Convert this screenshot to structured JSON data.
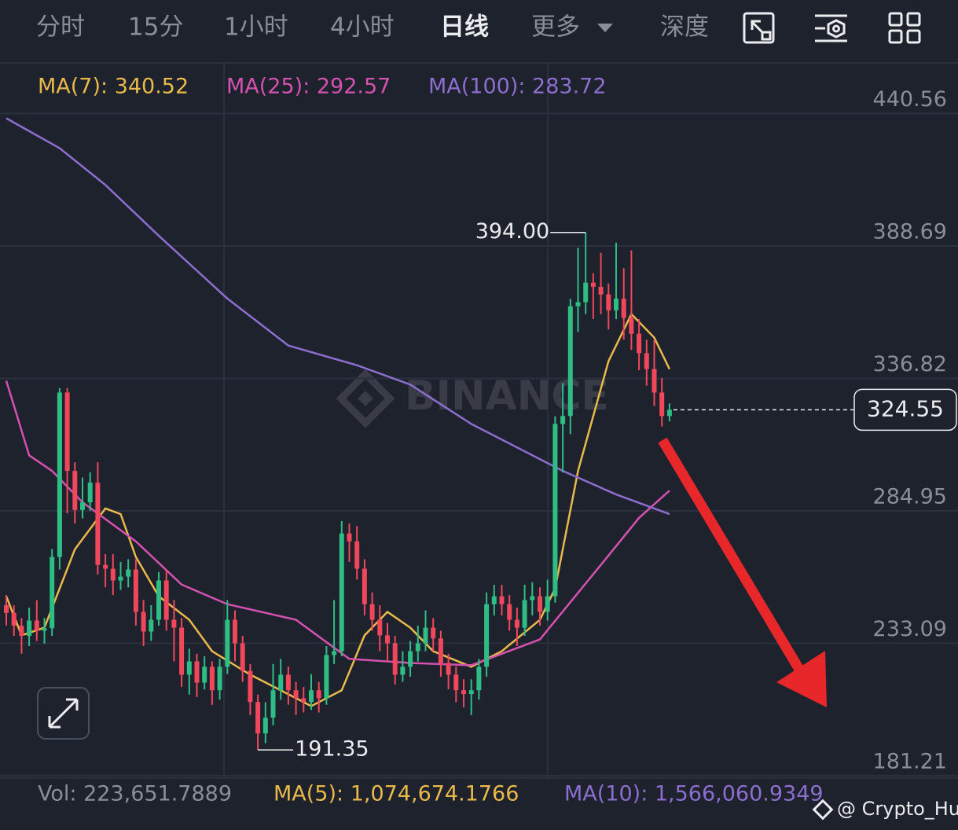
{
  "tabs": [
    "分时",
    "15分",
    "1小时",
    "4小时",
    "日线",
    "更多",
    "深度"
  ],
  "watermark": "BINANCE",
  "credit": "@ Crypto_Hu",
  "volume_legend": [
    "Vol: 223,651.7889",
    "MA(5): 1,074,674.1766",
    "MA(10): 1,566,060.9349"
  ],
  "chart_data": {
    "type": "candlestick",
    "up_color": "#2ebd85",
    "down_color": "#f0475c",
    "ylim": [
      180.29,
      460.4
    ],
    "yticks": [
      440.56,
      388.69,
      336.82,
      284.95,
      233.09,
      181.21
    ],
    "grid": true,
    "last_price": 324.55,
    "high_label": "394.00",
    "low_label": "191.35",
    "open": [
      248,
      245,
      240,
      236,
      242,
      238,
      239,
      266.9,
      331.3,
      300.6,
      285.3,
      288.3,
      296.0,
      263.8,
      262.3,
      257.7,
      259.2,
      262.0,
      245.4,
      237.7,
      242.3,
      257.7,
      242.3,
      239.2,
      220.8,
      226.0,
      217.7,
      223.9,
      214.7,
      223.9,
      242.3,
      233.1,
      222.3,
      210.1,
      197.8,
      204.0,
      214.7,
      220.8,
      214.7,
      211.6,
      210.1,
      214.7,
      211.6,
      228.5,
      230.0,
      276.1,
      273.0,
      262.3,
      248.4,
      242.3,
      236.2,
      233.1,
      220.8,
      223.9,
      230.0,
      233.1,
      239.2,
      235.0,
      225.4,
      220.8,
      214.7,
      213.2,
      214.7,
      223.9,
      248.4,
      251.5,
      248.4,
      242.3,
      239.2,
      250.0,
      251.5,
      245.4,
      251.5,
      319.0,
      322.1,
      365.1,
      366.7,
      374.3,
      372.7,
      369.7,
      363.5,
      368.1,
      360.5,
      354.3,
      346.7,
      340.5,
      331.3,
      322.1
    ],
    "high": [
      252,
      248,
      243,
      247,
      250,
      243,
      270,
      333,
      333,
      304,
      298,
      300,
      304,
      268,
      268,
      265,
      266,
      266,
      250,
      248,
      261,
      262,
      250,
      243,
      231,
      229,
      228,
      226,
      227,
      250,
      246,
      236,
      225,
      213,
      210,
      225,
      227,
      224,
      218,
      216,
      221,
      218,
      232,
      250,
      281,
      280,
      279,
      266,
      253,
      248,
      241,
      236,
      230,
      234,
      240,
      246,
      243,
      238,
      229,
      224,
      219,
      219,
      227,
      253,
      256,
      256,
      252,
      247,
      256,
      257,
      255,
      258,
      322,
      335,
      368,
      388,
      394,
      378,
      386,
      374,
      390,
      380,
      387,
      360,
      352,
      352,
      337,
      327
    ],
    "low": [
      240,
      236,
      229,
      232,
      234,
      233,
      236,
      262,
      284,
      280,
      282,
      285,
      260,
      255,
      252,
      254,
      255,
      240,
      232,
      234,
      240,
      238,
      226,
      216,
      213,
      212,
      215,
      209,
      211,
      221,
      226,
      218,
      205,
      191.35,
      194,
      201,
      211,
      209,
      205,
      206,
      207,
      206,
      209,
      225,
      228,
      265,
      258,
      244,
      238,
      230,
      226,
      217,
      218,
      220,
      226,
      230,
      230,
      220,
      215,
      210,
      208,
      205,
      211,
      220,
      244,
      244,
      238,
      232,
      236,
      244,
      240,
      242,
      249,
      300,
      315,
      355,
      362,
      360,
      362,
      356,
      360,
      352,
      348,
      340,
      334,
      326,
      318,
      320
    ],
    "close": [
      245,
      240,
      236,
      242,
      238,
      239,
      266.9,
      331.3,
      300.6,
      285.3,
      288.3,
      296.0,
      263.8,
      262.3,
      257.7,
      259.2,
      262.0,
      245.4,
      237.7,
      242.3,
      257.7,
      242.3,
      239.2,
      220.8,
      226.0,
      217.7,
      223.9,
      214.7,
      223.9,
      242.3,
      233.1,
      222.3,
      210.1,
      197.8,
      204.0,
      214.7,
      220.8,
      214.7,
      211.6,
      210.1,
      214.7,
      211.6,
      228.5,
      230.0,
      276.1,
      273.0,
      262.3,
      248.4,
      242.3,
      236.2,
      233.1,
      220.8,
      223.9,
      230.0,
      233.1,
      239.2,
      235.0,
      225.4,
      220.8,
      214.7,
      213.2,
      214.7,
      223.9,
      248.4,
      251.5,
      248.4,
      242.3,
      239.2,
      250.0,
      251.5,
      245.4,
      251.5,
      319.0,
      322.1,
      365.1,
      366.7,
      374.3,
      372.7,
      369.7,
      363.5,
      368.1,
      360.5,
      354.3,
      346.7,
      340.5,
      331.3,
      322.1,
      324.55
    ],
    "series": [
      {
        "name": "MA(7): 340.52",
        "color": "#e9b949",
        "x": [
          0,
          2,
          5,
          9,
          13,
          15,
          17,
          20,
          24,
          27,
          32,
          36,
          40,
          44,
          47,
          50,
          53,
          56,
          61,
          65,
          70,
          72,
          75,
          79,
          82,
          85,
          87
        ],
        "values": [
          251.5,
          236.2,
          239.2,
          269.9,
          285.9,
          283.7,
          266.9,
          251.5,
          242.3,
          230.0,
          220.8,
          214.7,
          208.5,
          214.7,
          236.2,
          245.4,
          239.2,
          230.0,
          223.9,
          230.0,
          242.3,
          254.6,
          300.6,
          343.6,
          362.0,
          352.8,
          340.5
        ]
      },
      {
        "name": "MA(25): 292.57",
        "color": "#d551b0",
        "x": [
          0,
          3,
          6,
          10,
          17,
          23,
          29,
          38,
          45,
          53,
          61,
          70,
          78,
          83,
          87
        ],
        "values": [
          335.9,
          306.7,
          300.6,
          288.3,
          273.0,
          256.1,
          248.4,
          242.3,
          227.0,
          225.4,
          224.5,
          234.6,
          263.8,
          282.2,
          292.9
        ]
      },
      {
        "name": "MA(100): 283.72",
        "color": "#8c6ecf",
        "x": [
          0,
          7,
          13,
          20,
          29,
          37,
          46,
          53,
          61,
          73,
          80,
          87
        ],
        "values": [
          438.7,
          427.0,
          412.6,
          392.7,
          368.1,
          349.7,
          342.0,
          334.4,
          319.0,
          300.6,
          291.4,
          283.7
        ]
      }
    ]
  }
}
